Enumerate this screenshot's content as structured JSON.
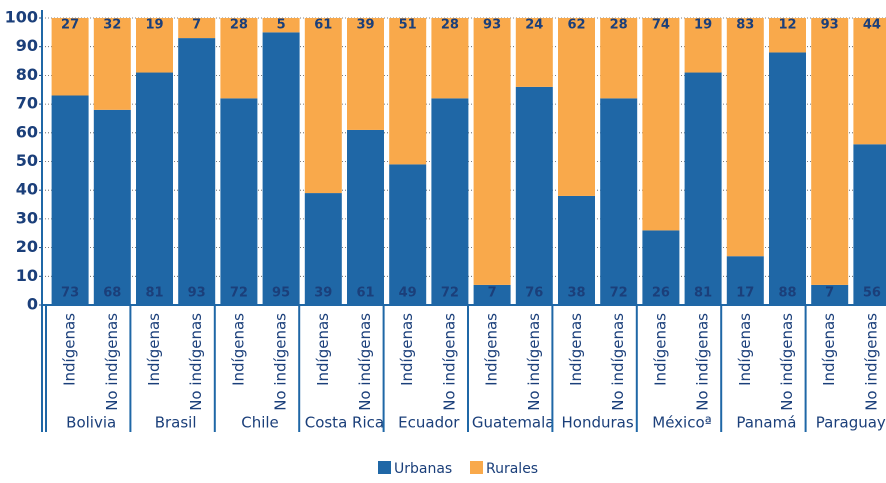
{
  "chart_data": {
    "type": "stacked_bar",
    "categories": [
      "Indígenas",
      "No indígenas",
      "Indígenas",
      "No indígenas",
      "Indígenas",
      "No indígenas",
      "Indígenas",
      "No indígenas",
      "Indígenas",
      "No indígenas",
      "Indígenas",
      "No indígenas",
      "Indígenas",
      "No indígenas",
      "Indígenas",
      "No indígenas",
      "Indígenas",
      "No indígenas",
      "Indígenas",
      "No indígenas"
    ],
    "groups": [
      "Bolivia",
      "Brasil",
      "Chile",
      "Costa Rica",
      "Ecuador",
      "Guatemala",
      "Honduras",
      "Méxicoª",
      "Panamá",
      "Paraguay"
    ],
    "series": [
      {
        "name": "Urbanas",
        "color": "#1f67a6",
        "values": [
          73,
          68,
          81,
          93,
          72,
          95,
          39,
          61,
          49,
          72,
          7,
          76,
          38,
          72,
          26,
          81,
          17,
          88,
          7,
          56
        ]
      },
      {
        "name": "Rurales",
        "color": "#f9a94b",
        "values": [
          27,
          32,
          19,
          7,
          28,
          5,
          61,
          39,
          51,
          28,
          93,
          24,
          62,
          28,
          74,
          19,
          83,
          12,
          93,
          44
        ]
      }
    ],
    "ylim": [
      0,
      100
    ],
    "yticks": [
      0,
      10,
      20,
      30,
      40,
      50,
      60,
      70,
      80,
      90,
      100
    ],
    "grid": true,
    "legend": "bottom"
  }
}
